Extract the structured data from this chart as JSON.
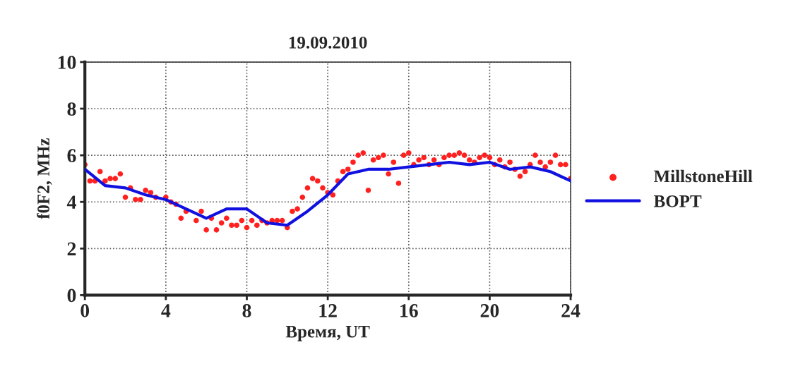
{
  "chart_data": {
    "type": "scatter",
    "title": "19.09.2010",
    "xlabel": "Время, UT",
    "ylabel": "f0F2, MHz",
    "xlim": [
      0,
      24
    ],
    "xticks": [
      0,
      4,
      8,
      12,
      16,
      20,
      24
    ],
    "ylim": [
      0,
      10
    ],
    "yticks": [
      0,
      2,
      4,
      6,
      8,
      10
    ],
    "grid": true,
    "legend": "right",
    "series": [
      {
        "name": "MillstoneHill",
        "marker": "circle",
        "color": "#ff2020",
        "x": [
          0,
          0.25,
          0.5,
          0.75,
          1,
          1.25,
          1.5,
          1.75,
          2,
          2.25,
          2.5,
          2.75,
          3,
          3.25,
          3.5,
          4,
          4.25,
          4.5,
          4.75,
          5,
          5.5,
          5.75,
          6,
          6.25,
          6.5,
          6.75,
          7,
          7.25,
          7.5,
          7.75,
          8,
          8.25,
          8.5,
          8.75,
          9,
          9.25,
          9.5,
          9.75,
          10,
          10.25,
          10.5,
          10.75,
          11,
          11.25,
          11.5,
          11.75,
          12,
          12.25,
          12.5,
          12.75,
          13,
          13.25,
          13.5,
          13.75,
          14,
          14.25,
          14.5,
          14.75,
          15,
          15.25,
          15.5,
          15.75,
          16,
          16.25,
          16.5,
          16.75,
          17,
          17.25,
          17.5,
          17.75,
          18,
          18.25,
          18.5,
          18.75,
          19,
          19.25,
          19.5,
          19.75,
          20,
          20.25,
          20.5,
          20.75,
          21,
          21.25,
          21.5,
          21.75,
          22,
          22.25,
          22.5,
          22.75,
          23,
          23.25,
          23.5,
          23.75,
          24
        ],
        "values": [
          5.6,
          4.9,
          4.9,
          5.3,
          4.9,
          5.0,
          5.0,
          5.2,
          4.2,
          4.6,
          4.1,
          4.1,
          4.5,
          4.4,
          4.2,
          4.2,
          4.0,
          3.9,
          3.3,
          3.6,
          3.2,
          3.6,
          2.8,
          3.3,
          2.8,
          3.1,
          3.3,
          3.0,
          3.0,
          3.2,
          2.9,
          3.2,
          3.0,
          3.2,
          3.1,
          3.2,
          3.2,
          3.2,
          2.9,
          3.6,
          3.7,
          4.2,
          4.6,
          5.0,
          4.9,
          4.6,
          4.4,
          4.3,
          4.9,
          5.3,
          5.4,
          5.7,
          6.0,
          6.1,
          4.5,
          5.8,
          5.9,
          6.0,
          5.2,
          5.7,
          4.8,
          6.0,
          6.1,
          5.6,
          5.8,
          5.9,
          5.6,
          5.8,
          5.6,
          5.9,
          6.0,
          6.0,
          6.1,
          6.0,
          5.8,
          5.7,
          5.9,
          6.0,
          5.9,
          5.6,
          5.8,
          5.5,
          5.7,
          5.4,
          5.1,
          5.3,
          5.6,
          6.0,
          5.7,
          5.5,
          5.7,
          6.0,
          5.6,
          5.6,
          5.0
        ]
      },
      {
        "name": "BOPT",
        "type": "line",
        "line_style": "solid",
        "color": "#1010e0",
        "x": [
          0,
          1,
          2,
          3,
          4,
          5,
          6,
          7,
          8,
          9,
          10,
          11,
          12,
          13,
          14,
          15,
          16,
          17,
          18,
          19,
          20,
          21,
          22,
          23,
          24
        ],
        "values": [
          5.4,
          4.7,
          4.6,
          4.3,
          4.1,
          3.7,
          3.3,
          3.7,
          3.7,
          3.1,
          3.0,
          3.6,
          4.3,
          5.2,
          5.4,
          5.4,
          5.5,
          5.6,
          5.7,
          5.6,
          5.7,
          5.4,
          5.5,
          5.3,
          4.9
        ]
      }
    ]
  }
}
